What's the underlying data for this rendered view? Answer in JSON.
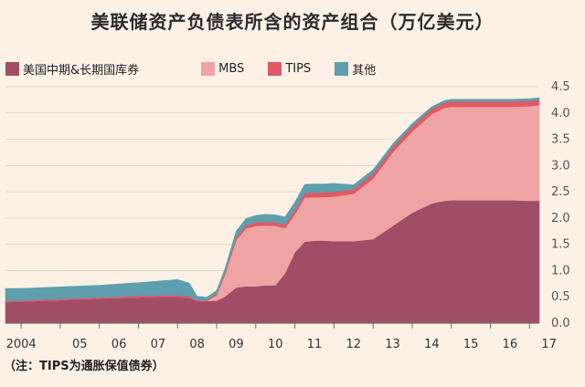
{
  "chart_data": {
    "type": "area",
    "title": "美联储资产负债表所含的资产组合（万亿美元）",
    "stacked": true,
    "x_tick_labels": [
      "2004",
      "05",
      "06",
      "07",
      "08",
      "09",
      "10",
      "11",
      "12",
      "13",
      "14",
      "15",
      "16",
      "17"
    ],
    "y_tick_labels": [
      "0.0",
      "0.5",
      "1.0",
      "1.5",
      "2.0",
      "2.5",
      "3.0",
      "3.5",
      "4.0",
      "4.5"
    ],
    "ylim": [
      0,
      4.5
    ],
    "y_axis_side": "right",
    "grid": true,
    "legend_position": "top-left",
    "x": [
      2003.6,
      2004.0,
      2005.0,
      2006.0,
      2007.0,
      2007.5,
      2008.0,
      2008.3,
      2008.5,
      2008.75,
      2009.0,
      2009.2,
      2009.5,
      2009.75,
      2010.0,
      2010.25,
      2010.5,
      2010.75,
      2011.0,
      2011.25,
      2011.5,
      2011.75,
      2012.0,
      2012.5,
      2013.0,
      2013.5,
      2014.0,
      2014.5,
      2014.83,
      2015.0,
      2015.5,
      2016.0,
      2016.5,
      2017.0,
      2017.25
    ],
    "series": [
      {
        "name": "美国中期&长期国库券",
        "color": "#a24d67",
        "values": [
          0.4,
          0.41,
          0.44,
          0.47,
          0.49,
          0.5,
          0.5,
          0.48,
          0.42,
          0.42,
          0.43,
          0.5,
          0.68,
          0.7,
          0.7,
          0.72,
          0.72,
          0.95,
          1.35,
          1.55,
          1.57,
          1.57,
          1.56,
          1.56,
          1.6,
          1.85,
          2.1,
          2.28,
          2.33,
          2.34,
          2.34,
          2.34,
          2.34,
          2.33,
          2.33
        ]
      },
      {
        "name": "MBS",
        "color": "#f0a3a3",
        "values": [
          0,
          0,
          0,
          0,
          0,
          0,
          0,
          0,
          0,
          0,
          0.1,
          0.4,
          0.9,
          1.1,
          1.15,
          1.14,
          1.13,
          0.86,
          0.72,
          0.84,
          0.83,
          0.83,
          0.85,
          0.9,
          1.15,
          1.4,
          1.55,
          1.7,
          1.77,
          1.78,
          1.78,
          1.78,
          1.78,
          1.8,
          1.82
        ]
      },
      {
        "name": "TIPS",
        "color": "#e05a66",
        "values": [
          0.02,
          0.02,
          0.02,
          0.02,
          0.03,
          0.03,
          0.03,
          0.03,
          0.02,
          0.02,
          0.03,
          0.04,
          0.05,
          0.06,
          0.07,
          0.07,
          0.07,
          0.07,
          0.08,
          0.09,
          0.09,
          0.09,
          0.09,
          0.09,
          0.1,
          0.1,
          0.1,
          0.1,
          0.1,
          0.1,
          0.1,
          0.1,
          0.1,
          0.1,
          0.1
        ]
      },
      {
        "name": "其他",
        "color": "#5e9ead",
        "values": [
          0.24,
          0.23,
          0.23,
          0.23,
          0.25,
          0.27,
          0.3,
          0.25,
          0.07,
          0.05,
          0.06,
          0.07,
          0.12,
          0.13,
          0.13,
          0.14,
          0.14,
          0.14,
          0.15,
          0.16,
          0.16,
          0.16,
          0.16,
          0.08,
          0.07,
          0.06,
          0.05,
          0.04,
          0.04,
          0.04,
          0.04,
          0.04,
          0.04,
          0.04,
          0.04
        ]
      }
    ],
    "footnote": "（注：TIPS为通胀保值债券）"
  }
}
